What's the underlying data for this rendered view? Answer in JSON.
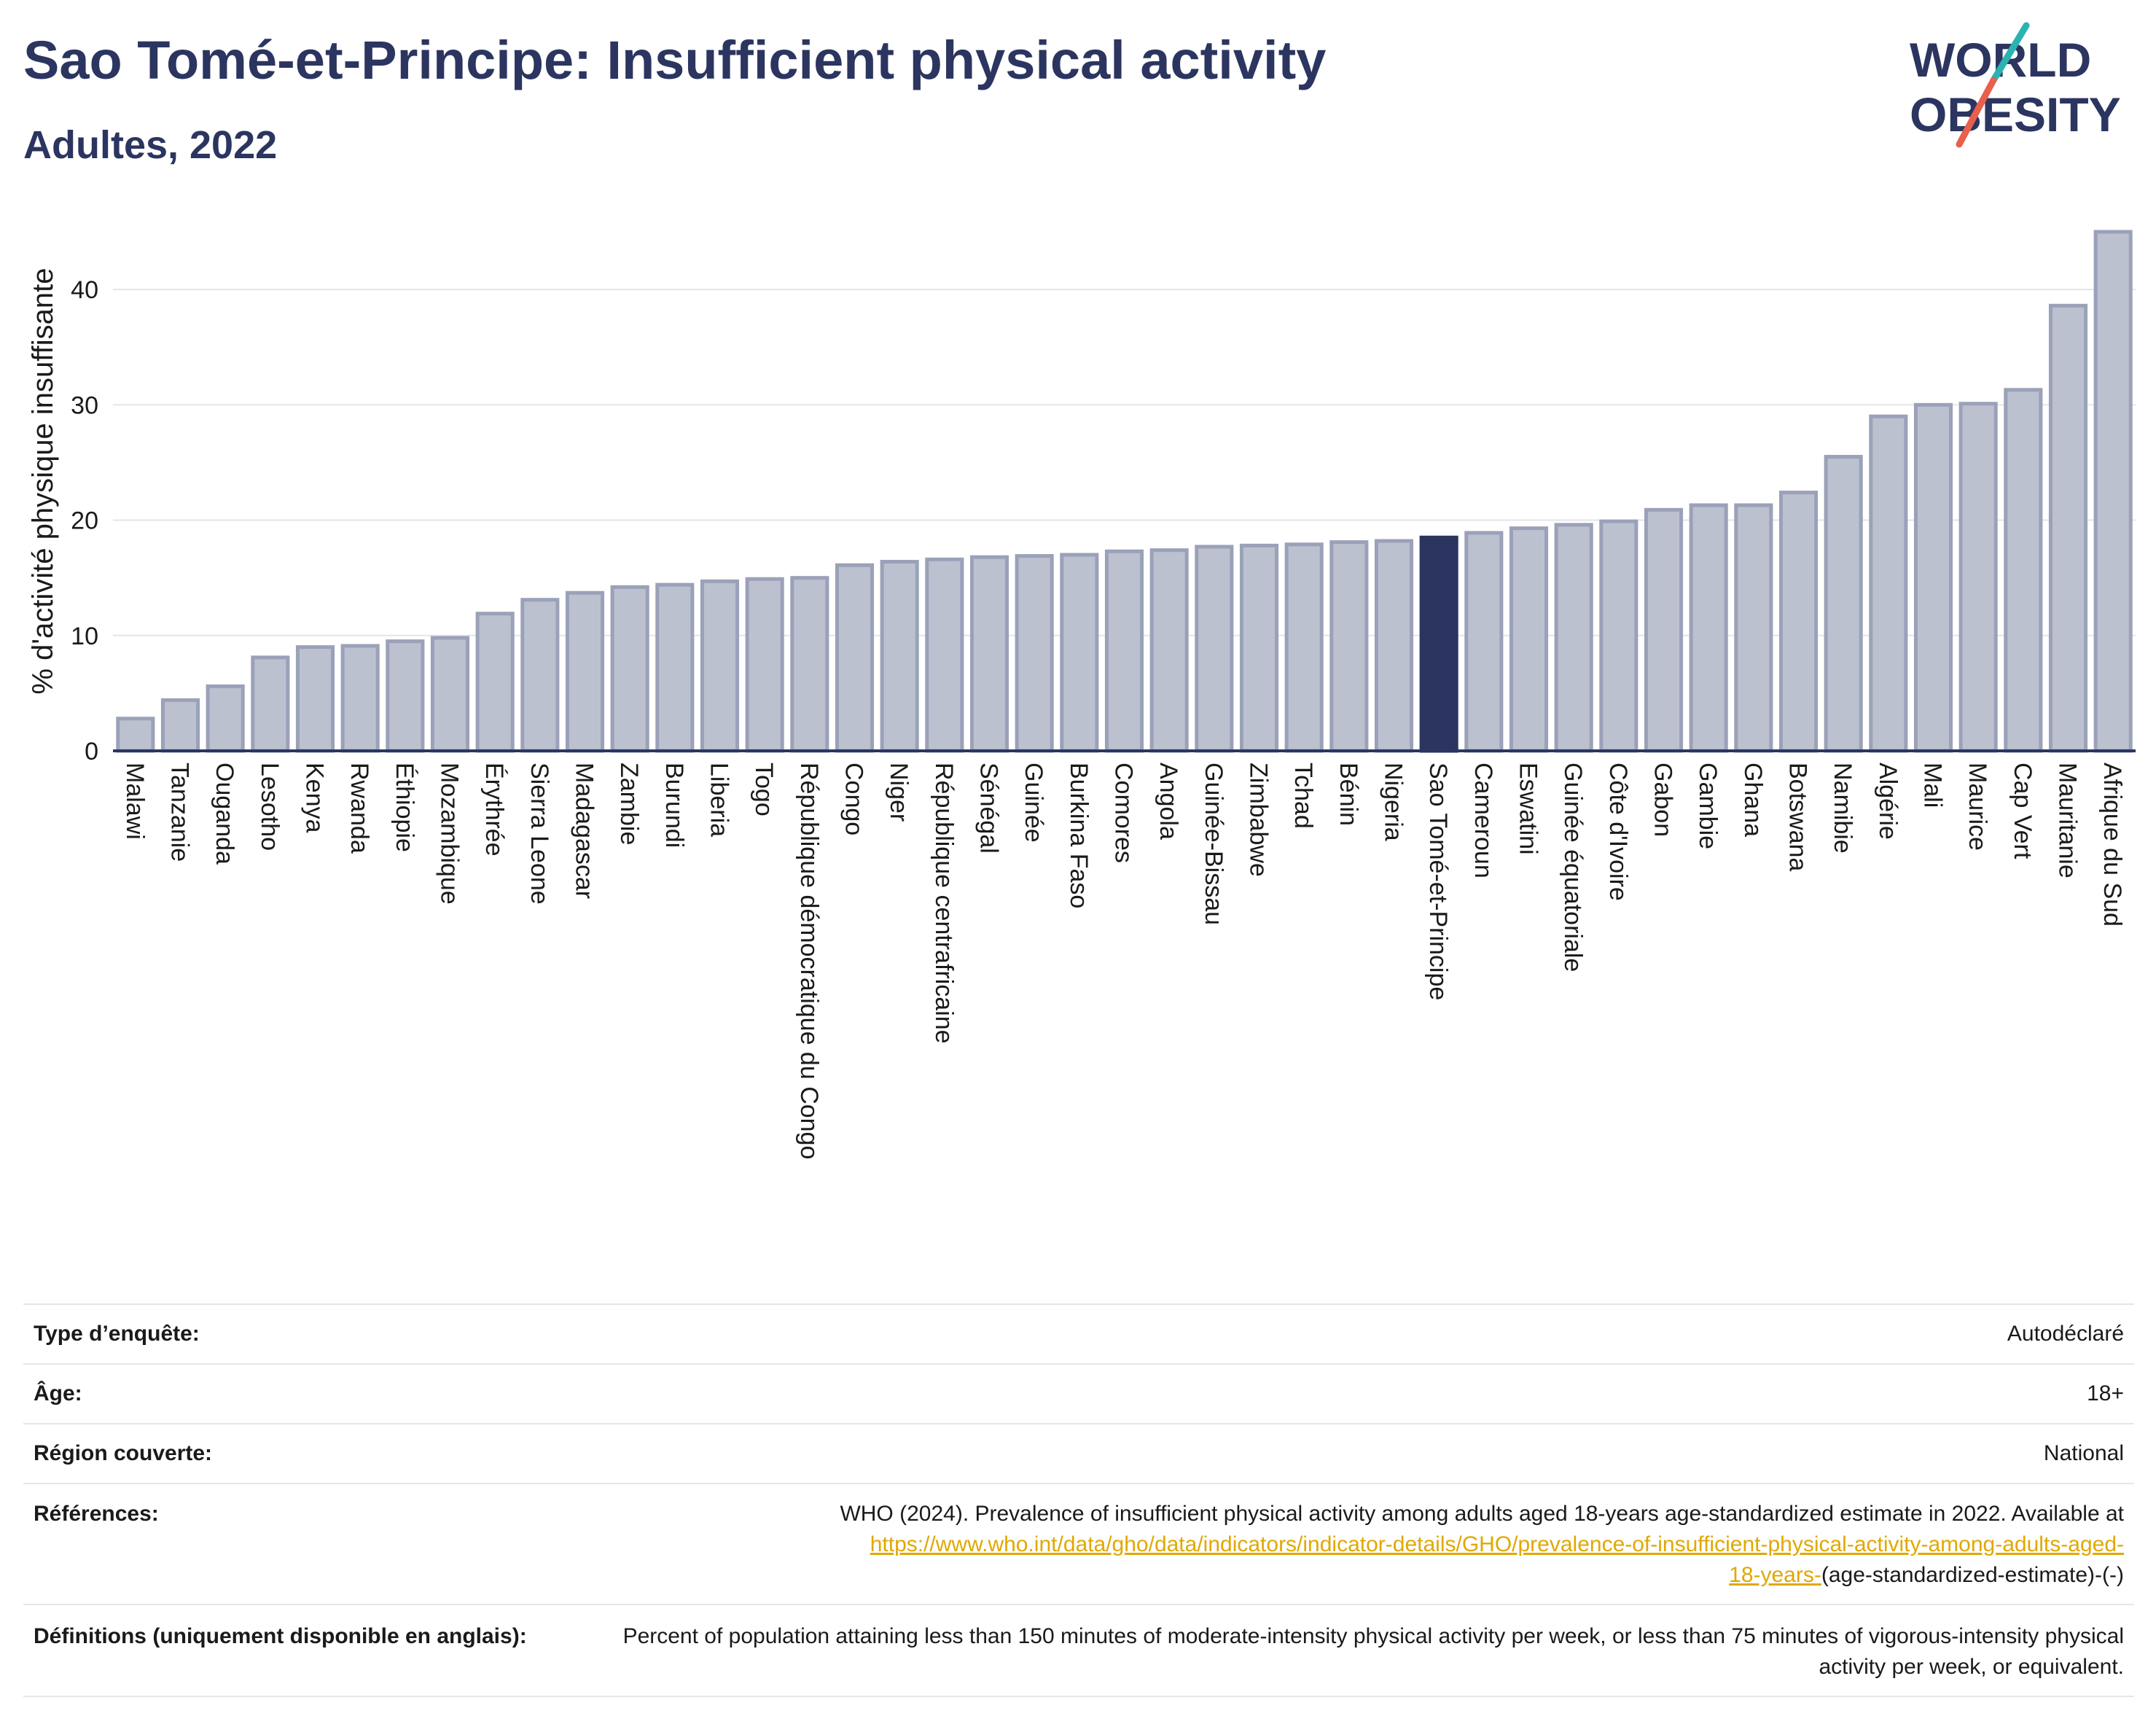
{
  "header": {
    "title": "Sao Tomé-et-Principe: Insufficient physical activity",
    "subtitle": "Adultes, 2022"
  },
  "logo": {
    "line1": "WORLD",
    "line2": "OBESITY"
  },
  "colors": {
    "highlight_bar": "#2b3560",
    "bar_fill": "#bcc1d0",
    "bar_stroke": "#9aa1b8",
    "text_dark": "#2b3560",
    "logo_teal": "#2bb3b1",
    "logo_coral": "#e8604c",
    "link": "#e0a800"
  },
  "chart_data": {
    "type": "bar",
    "ylabel": "% d'activité physique insuffisante",
    "ylim": [
      0,
      45
    ],
    "yticks": [
      0,
      10,
      20,
      30,
      40
    ],
    "grid": true,
    "highlight": "Sao Tomé-et-Principe",
    "categories": [
      "Malawi",
      "Tanzanie",
      "Ouganda",
      "Lesotho",
      "Kenya",
      "Rwanda",
      "Éthiopie",
      "Mozambique",
      "Érythrée",
      "Sierra Leone",
      "Madagascar",
      "Zambie",
      "Burundi",
      "Liberia",
      "Togo",
      "République démocratique du Congo",
      "Congo",
      "Niger",
      "République centrafricaine",
      "Sénégal",
      "Guinée",
      "Burkina Faso",
      "Comores",
      "Angola",
      "Guinée-Bissau",
      "Zimbabwe",
      "Tchad",
      "Bénin",
      "Nigeria",
      "Sao Tomé-et-Principe",
      "Cameroun",
      "Eswatini",
      "Guinée équatoriale",
      "Côte d'Ivoire",
      "Gabon",
      "Gambie",
      "Ghana",
      "Botswana",
      "Namibie",
      "Algérie",
      "Mali",
      "Maurice",
      "Cap Vert",
      "Mauritanie",
      "Afrique du Sud"
    ],
    "values": [
      2.8,
      4.4,
      5.6,
      8.1,
      9.0,
      9.1,
      9.5,
      9.8,
      11.9,
      13.1,
      13.7,
      14.2,
      14.4,
      14.7,
      14.9,
      15.0,
      16.1,
      16.4,
      16.6,
      16.8,
      16.9,
      17.0,
      17.3,
      17.4,
      17.7,
      17.8,
      17.9,
      18.1,
      18.2,
      18.5,
      18.9,
      19.3,
      19.6,
      19.9,
      20.9,
      21.3,
      21.3,
      22.4,
      25.5,
      29.0,
      30.0,
      30.1,
      31.3,
      38.6,
      45.0
    ]
  },
  "info": {
    "rows": [
      {
        "label": "Type d’enquête:",
        "value": "Autodéclaré"
      },
      {
        "label": "Âge:",
        "value": "18+"
      },
      {
        "label": "Région couverte:",
        "value": "National"
      }
    ],
    "references": {
      "label": "Références:",
      "text": "WHO (2024). Prevalence of insufficient physical activity among adults aged 18-years age-standardized estimate in 2022. Available at",
      "link_part1": "https://www.who.int/data/gho/data/indicators/indicator-details/GHO/prevalence-of-insufficient-physical-activity-among-adults-aged-",
      "link_part2": "18-years-",
      "suffix": "(age-standardized-estimate)-(-)"
    },
    "definitions": {
      "label": "Définitions (uniquement disponible en anglais):",
      "text": "Percent of population attaining less than 150 minutes of moderate-intensity physical activity per week, or less than 75 minutes of vigorous-intensity physical activity per week, or equivalent."
    }
  }
}
